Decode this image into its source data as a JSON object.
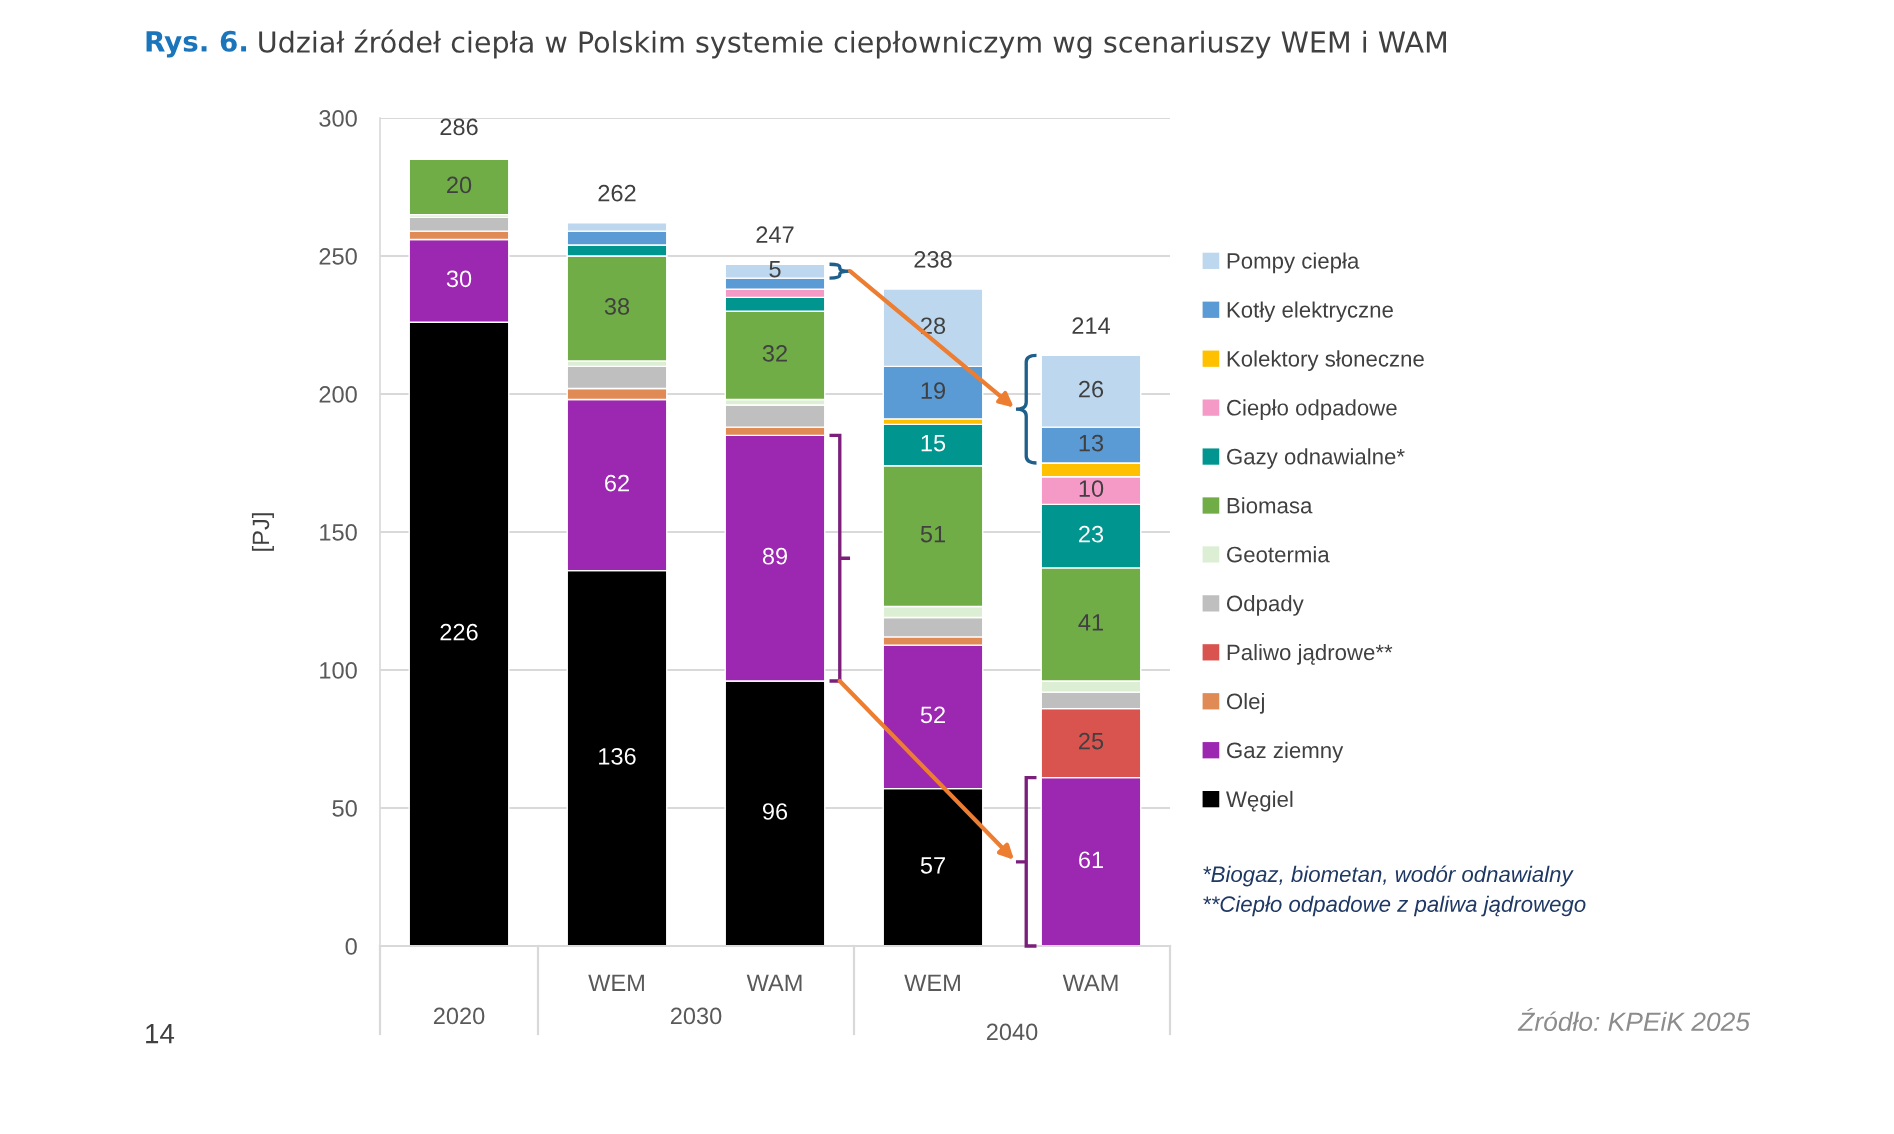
{
  "chart_data": {
    "type": "bar",
    "stacked": true,
    "title": "Rys. 6.",
    "subtitle": "Udział źródeł ciepła w Polskim systemie ciepłowniczym wg scenariuszy WEM i WAM",
    "ylabel": "[PJ]",
    "categories": [
      null,
      "WEM",
      "WAM",
      "WEM",
      "WAM"
    ],
    "ylim": [
      0,
      300
    ],
    "yticks": [
      0,
      50,
      100,
      150,
      200,
      250,
      300
    ],
    "grid": "y",
    "legend": "right",
    "series": [
      {
        "name": "Węgiel",
        "color": "#000000",
        "values": [
          226,
          136,
          96,
          57,
          null
        ],
        "value_labels": [
          "226",
          "136",
          "96",
          "57",
          null
        ]
      },
      {
        "name": "Gaz ziemny",
        "color": "#9c27b0",
        "values": [
          30,
          62,
          89,
          52,
          61
        ],
        "value_labels": [
          "30",
          "62",
          "89",
          "52",
          "61"
        ]
      },
      {
        "name": "Olej",
        "color": "#e08a55",
        "values": [
          3,
          4,
          3,
          3,
          null
        ]
      },
      {
        "name": "Paliwo jądrowe**",
        "color": "#d9534f",
        "values": [
          null,
          null,
          null,
          null,
          25
        ],
        "value_labels": [
          null,
          null,
          null,
          null,
          "25"
        ]
      },
      {
        "name": "Odpady",
        "color": "#bfbfbf",
        "values": [
          5,
          8,
          8,
          7,
          6
        ]
      },
      {
        "name": "Geotermia",
        "color": "#dcefd5",
        "values": [
          1,
          2,
          2,
          4,
          4
        ]
      },
      {
        "name": "Biomasa",
        "color": "#70ad47",
        "values": [
          20,
          38,
          32,
          51,
          41
        ],
        "value_labels": [
          "20",
          "38",
          "32",
          "51",
          "41"
        ]
      },
      {
        "name": "Gazy odnawialne*",
        "color": "#00968f",
        "values": [
          0.5,
          4,
          5,
          15,
          23
        ],
        "value_labels": [
          null,
          null,
          null,
          "15",
          "23"
        ]
      },
      {
        "name": "Ciepło odpadowe",
        "color": "#f59ac6",
        "values": [
          0.5,
          null,
          3,
          null,
          10
        ],
        "value_labels": [
          null,
          null,
          null,
          null,
          "10"
        ]
      },
      {
        "name": "Kolektory słoneczne",
        "color": "#ffc000",
        "values": [
          null,
          null,
          null,
          2,
          5
        ]
      },
      {
        "name": "Kotły elektryczne",
        "color": "#5b9bd5",
        "values": [
          null,
          5,
          4,
          19,
          13
        ],
        "value_labels": [
          null,
          null,
          null,
          "19",
          "13"
        ]
      },
      {
        "name": "Pompy ciepła",
        "color": "#bdd7ee",
        "values": [
          null,
          3,
          5,
          28,
          26
        ],
        "value_labels": [
          null,
          null,
          "5",
          "28",
          "26"
        ]
      }
    ],
    "totals": [
      "286",
      "262",
      "247",
      "238",
      "214"
    ],
    "annotations": [
      "2020",
      "2030",
      "2040",
      "*Biogaz, biometan, wodór odnawialny",
      "**Ciepło odpadowe z paliwa jądrowego",
      "Źródło: KPEiK 2025",
      "14"
    ]
  }
}
